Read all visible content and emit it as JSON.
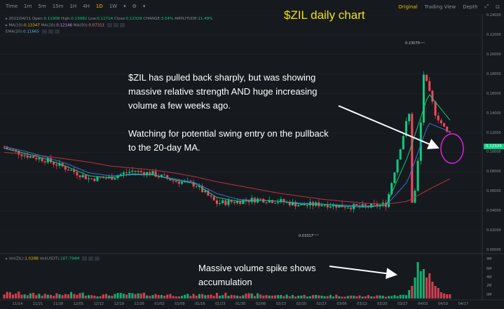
{
  "toolbar": {
    "intervals": [
      "Time",
      "1m",
      "5m",
      "15m",
      "1H",
      "4H",
      "1D",
      "1W"
    ],
    "active_interval": "1D",
    "views": [
      "Original",
      "Trading View",
      "Depth"
    ],
    "active_view": "Original"
  },
  "ohlc": {
    "date": "2022/04/11",
    "open_label": "Open:",
    "open": "0.11908",
    "high_label": "High:",
    "high": "0.13082",
    "low_label": "Low:",
    "low": "0.11714",
    "close_label": "Close:",
    "close": "0.12329",
    "change_label": "CHANGE:",
    "change": "3.54%",
    "amplitude_label": "AMPLITUDE:",
    "amplitude": "11.49%"
  },
  "ma": {
    "ma10_label": "MA(10):",
    "ma10": "0.13347",
    "ma20_label": "MA(20):",
    "ma20": "0.12146",
    "ma50_label": "MA(50):",
    "ma50": "0.07311"
  },
  "ema": {
    "label": "EMA(20):",
    "value": "0.11665"
  },
  "volume": {
    "vol_zil_label": "Vol(ZIL):",
    "vol_zil": "1.028B",
    "vol_usdt_label": "Vol(USDT):",
    "vol_usdt": "187.794M"
  },
  "annotations": {
    "title": "$ZIL daily chart",
    "note1": "$ZIL has pulled back sharply, but was showing",
    "note2": "massive relative strength AND huge increasing",
    "note3": "volume a few weeks ago.",
    "note4": "Watching for potential swing entry on the pullback",
    "note5": "to the 20-day MA.",
    "vol_note1": "Massive volume spike shows",
    "vol_note2": "accumulation"
  },
  "markers": {
    "high": "0.23070",
    "low": "0.03317"
  },
  "current_price": "0.12329",
  "price_axis": [
    "0.24000",
    "0.22000",
    "0.20000",
    "0.18000",
    "0.16000",
    "0.14000",
    "0.12000",
    "0.10000",
    "0.08000",
    "0.06000",
    "0.04000",
    "0.02000",
    "0.00000"
  ],
  "volume_axis": [
    "9M",
    "6M",
    "4M",
    "2M",
    "0M"
  ],
  "date_axis": [
    "11/14",
    "11/21",
    "11/28",
    "12/05",
    "12/12",
    "12/19",
    "12/26",
    "01/02",
    "01/09",
    "01/16",
    "01/23",
    "01/30",
    "02/06",
    "02/13",
    "02/20",
    "02/27",
    "03/06",
    "03/13",
    "03/20",
    "03/27",
    "04/03",
    "04/10",
    "04/17"
  ],
  "colors": {
    "up": "#0ecb81",
    "down": "#f6465d",
    "accent": "#f0b90b",
    "title": "#f0e20b",
    "ma10": "#0ecb81",
    "ma20": "#3d6fd6",
    "ma50": "#c0303f",
    "circle": "#e020e0"
  },
  "chart_data": {
    "type": "candlestick",
    "x": [
      "2021-11-14",
      "2021-11-21",
      "2021-11-28",
      "2021-12-05",
      "2021-12-12",
      "2021-12-19",
      "2021-12-26",
      "2022-01-02",
      "2022-01-09",
      "2022-01-16",
      "2022-01-23",
      "2022-01-30",
      "2022-02-06",
      "2022-02-13",
      "2022-02-20",
      "2022-02-27",
      "2022-03-06",
      "2022-03-13",
      "2022-03-20",
      "2022-03-27",
      "2022-04-03",
      "2022-04-10"
    ],
    "close": [
      0.105,
      0.097,
      0.092,
      0.083,
      0.073,
      0.074,
      0.081,
      0.078,
      0.071,
      0.067,
      0.048,
      0.05,
      0.052,
      0.05,
      0.046,
      0.047,
      0.045,
      0.044,
      0.047,
      0.135,
      0.18,
      0.123
    ],
    "series": [
      {
        "name": "MA(10)",
        "values": [
          0.104,
          0.099,
          0.093,
          0.085,
          0.076,
          0.074,
          0.078,
          0.077,
          0.072,
          0.068,
          0.054,
          0.05,
          0.051,
          0.05,
          0.047,
          0.047,
          0.045,
          0.044,
          0.046,
          0.095,
          0.16,
          0.133
        ]
      },
      {
        "name": "MA(20)",
        "values": [
          0.106,
          0.101,
          0.095,
          0.088,
          0.079,
          0.076,
          0.077,
          0.077,
          0.073,
          0.069,
          0.058,
          0.052,
          0.051,
          0.05,
          0.048,
          0.047,
          0.046,
          0.045,
          0.046,
          0.07,
          0.13,
          0.121
        ]
      },
      {
        "name": "MA(50)",
        "values": [
          0.1,
          0.098,
          0.096,
          0.093,
          0.09,
          0.086,
          0.084,
          0.082,
          0.079,
          0.075,
          0.07,
          0.066,
          0.062,
          0.058,
          0.055,
          0.052,
          0.05,
          0.048,
          0.047,
          0.05,
          0.062,
          0.073
        ]
      }
    ],
    "volume": [
      1.2,
      1.0,
      0.9,
      1.1,
      0.8,
      1.0,
      1.0,
      0.9,
      0.8,
      0.9,
      1.0,
      0.9,
      0.8,
      0.7,
      0.7,
      0.7,
      0.6,
      0.6,
      0.8,
      6.5,
      8.0,
      1.0
    ],
    "ylim": [
      0,
      0.24
    ]
  }
}
